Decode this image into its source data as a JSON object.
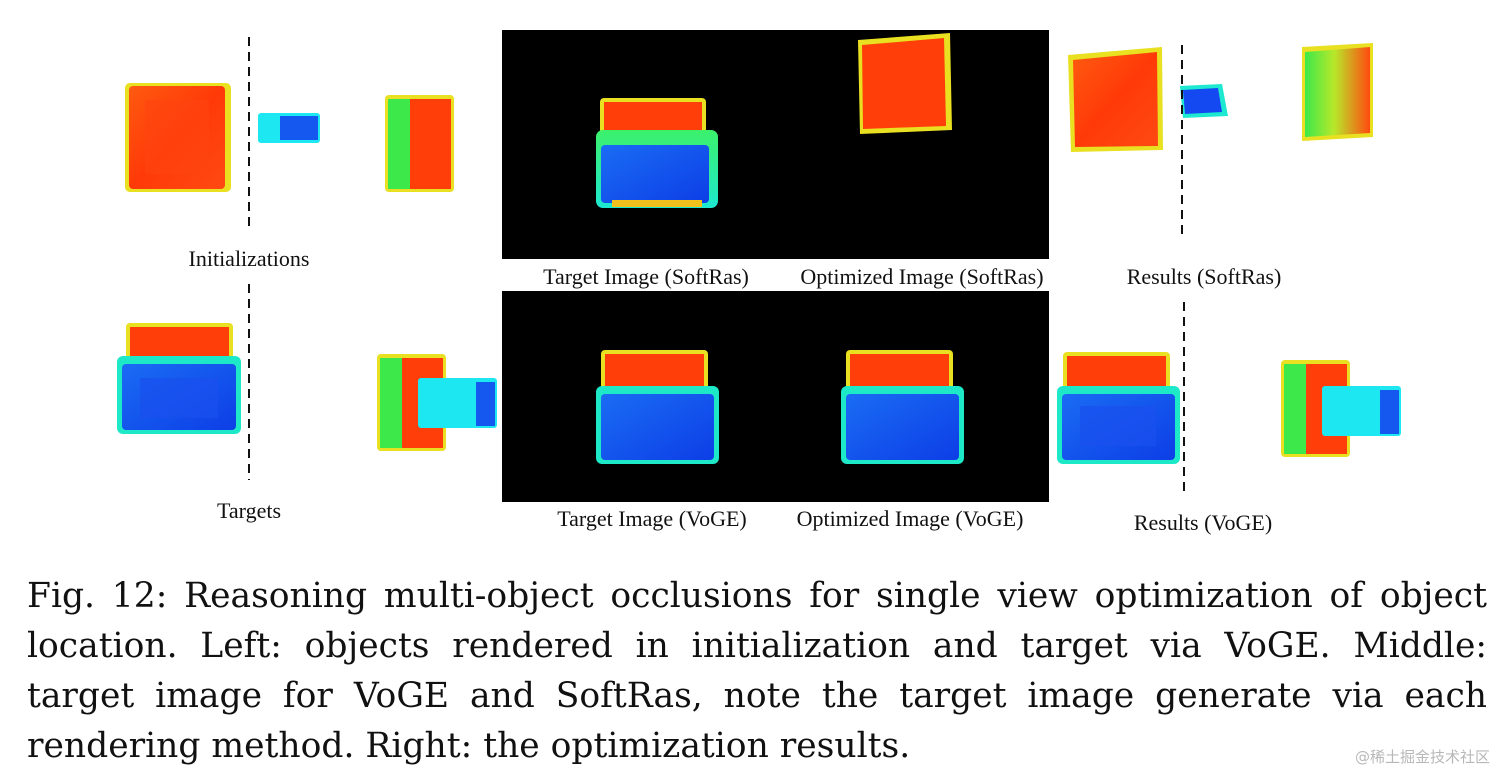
{
  "figure": {
    "labels": {
      "initializations": "Initializations",
      "targets": "Targets",
      "target_softras": "Target Image (SoftRas)",
      "optimized_softras": "Optimized Image (SoftRas)",
      "results_softras": "Results (SoftRas)",
      "target_voge": "Target Image (VoGE)",
      "optimized_voge": "Optimized Image (VoGE)",
      "results_voge": "Results (VoGE)"
    },
    "colors": {
      "red": "#ff3b0a",
      "blue": "#1448f0",
      "cyan": "#1de8f2",
      "green": "#3cf04a",
      "yellow": "#f2e81c",
      "panel": "#000000"
    }
  },
  "caption": {
    "text": "Fig. 12: Reasoning multi-object occlusions for single view optimization of object location. Left: objects rendered in initialization and target via VoGE. Middle: target image for VoGE and SoftRas, note the target image generate via each rendering method. Right: the optimization results."
  },
  "watermark": "@稀土掘金技术社区"
}
